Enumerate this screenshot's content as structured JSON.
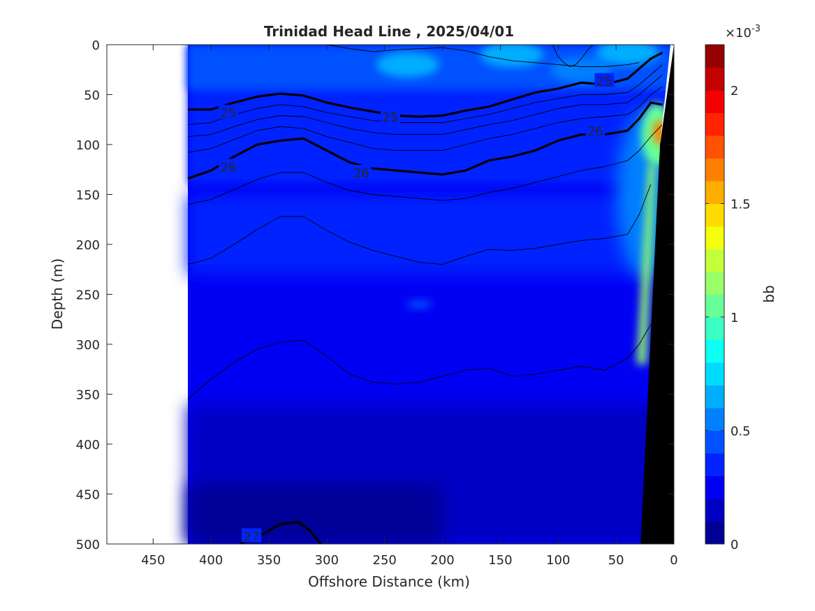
{
  "chart_data": {
    "type": "heatmap",
    "title": "Trinidad Head Line , 2025/04/01",
    "xlabel": "Offshore Distance (km)",
    "ylabel": "Depth (m)",
    "xlim": [
      490,
      0
    ],
    "ylim": [
      500,
      0
    ],
    "x_reversed": true,
    "y_reversed": true,
    "x_ticks": [
      450,
      400,
      350,
      300,
      250,
      200,
      150,
      100,
      50,
      0
    ],
    "y_ticks": [
      0,
      50,
      100,
      150,
      200,
      250,
      300,
      350,
      400,
      450,
      500
    ],
    "data_extent_km": [
      0,
      420
    ],
    "colorbar": {
      "label": "bb",
      "exponent_label": "×10",
      "exponent_power": "-3",
      "range": [
        0,
        2.2
      ],
      "ticks": [
        0,
        0.5,
        1,
        1.5,
        2
      ],
      "levels": 22,
      "colormap": "jet"
    },
    "field_description": "backscatter bb (x10^-3): mostly 0.1–0.5 over the section, elevated 0.5–0.7 in the upper 40 m, maximum ~1.6 near 15 km offshore at 80–100 m depth, high (~1.0–1.2) along the slope at 150–300 m; seafloor shown in black",
    "contours": [
      {
        "level": 25,
        "label": "25",
        "bold": true,
        "x": [
          420,
          400,
          380,
          360,
          340,
          320,
          300,
          280,
          260,
          240,
          220,
          200,
          180,
          160,
          140,
          120,
          100,
          80,
          60,
          40,
          30,
          20,
          10
        ],
        "y": [
          65,
          65,
          58,
          52,
          49,
          51,
          58,
          63,
          67,
          71,
          72,
          71,
          66,
          62,
          55,
          48,
          44,
          38,
          40,
          34,
          24,
          14,
          8
        ]
      },
      {
        "level": 26,
        "label": "26",
        "bold": true,
        "x": [
          420,
          400,
          380,
          360,
          340,
          320,
          300,
          280,
          260,
          240,
          220,
          200,
          180,
          160,
          140,
          120,
          100,
          80,
          60,
          40,
          30,
          20,
          10
        ],
        "y": [
          134,
          126,
          112,
          100,
          96,
          94,
          106,
          118,
          124,
          126,
          128,
          130,
          126,
          116,
          112,
          106,
          96,
          90,
          90,
          86,
          74,
          58,
          60
        ]
      },
      {
        "level": 25.3,
        "label": "",
        "bold": false,
        "x": [
          420,
          400,
          380,
          360,
          340,
          320,
          300,
          280,
          260,
          240,
          220,
          200,
          180,
          160,
          140,
          120,
          100,
          80,
          60,
          40,
          30,
          20,
          10
        ],
        "y": [
          80,
          78,
          70,
          64,
          60,
          62,
          68,
          72,
          76,
          78,
          78,
          78,
          74,
          70,
          64,
          58,
          54,
          50,
          50,
          48,
          40,
          30,
          20
        ]
      },
      {
        "level": 25.5,
        "label": "",
        "bold": false,
        "x": [
          420,
          400,
          380,
          360,
          340,
          320,
          300,
          280,
          260,
          240,
          220,
          200,
          180,
          160,
          140,
          120,
          100,
          80,
          60,
          40,
          30,
          20,
          10
        ],
        "y": [
          92,
          90,
          82,
          75,
          71,
          72,
          78,
          84,
          88,
          90,
          90,
          90,
          85,
          80,
          76,
          70,
          64,
          60,
          60,
          58,
          50,
          40,
          30
        ]
      },
      {
        "level": 25.8,
        "label": "",
        "bold": false,
        "x": [
          420,
          400,
          380,
          360,
          340,
          320,
          300,
          280,
          260,
          240,
          220,
          200,
          180,
          160,
          140,
          120,
          100,
          80,
          60,
          40,
          30,
          20,
          10
        ],
        "y": [
          108,
          104,
          95,
          86,
          82,
          84,
          92,
          98,
          104,
          106,
          106,
          106,
          100,
          94,
          90,
          84,
          78,
          74,
          72,
          70,
          62,
          50,
          42
        ]
      },
      {
        "level": 26.3,
        "label": "",
        "bold": false,
        "x": [
          420,
          400,
          380,
          360,
          340,
          320,
          300,
          280,
          260,
          240,
          220,
          200,
          180,
          160,
          140,
          120,
          100,
          80,
          60,
          40,
          30,
          20,
          10
        ],
        "y": [
          160,
          155,
          145,
          135,
          128,
          128,
          138,
          146,
          150,
          152,
          154,
          156,
          154,
          148,
          144,
          138,
          132,
          126,
          122,
          116,
          106,
          92,
          80
        ]
      },
      {
        "level": 26.6,
        "label": "",
        "bold": false,
        "x": [
          420,
          400,
          380,
          360,
          340,
          320,
          300,
          280,
          260,
          240,
          220,
          200,
          180,
          160,
          140,
          120,
          100,
          80,
          60,
          40,
          30,
          20
        ],
        "y": [
          220,
          214,
          200,
          185,
          172,
          172,
          186,
          198,
          206,
          212,
          218,
          220,
          212,
          205,
          206,
          204,
          200,
          196,
          194,
          190,
          170,
          140
        ]
      },
      {
        "level": 26.8,
        "label": "",
        "bold": false,
        "x": [
          420,
          400,
          380,
          360,
          340,
          320,
          300,
          280,
          260,
          240,
          220,
          200,
          180,
          160,
          140,
          120,
          100,
          80,
          60,
          40,
          30,
          20
        ],
        "y": [
          355,
          335,
          318,
          305,
          298,
          296,
          312,
          330,
          338,
          340,
          338,
          332,
          326,
          324,
          332,
          330,
          326,
          322,
          326,
          314,
          300,
          280
        ]
      },
      {
        "level": 25.0,
        "label": "",
        "bold": false,
        "x": [
          300,
          280,
          260,
          240,
          220,
          200,
          180,
          160,
          140,
          120,
          100,
          80,
          60,
          40,
          30
        ],
        "y": [
          0,
          4,
          7,
          5,
          4,
          3,
          6,
          12,
          16,
          18,
          20,
          22,
          22,
          20,
          18
        ]
      },
      {
        "level": 24.9,
        "label": "",
        "bold": false,
        "x": [
          105,
          100,
          95,
          90,
          85,
          80,
          75,
          70
        ],
        "y": [
          0,
          12,
          18,
          22,
          20,
          14,
          6,
          0
        ]
      },
      {
        "level": 27,
        "label": "27",
        "bold": true,
        "x": [
          375,
          355,
          340,
          325,
          315,
          305
        ],
        "y": [
          500,
          490,
          480,
          478,
          486,
          500
        ]
      }
    ],
    "contour_label_positions": [
      {
        "text": "25",
        "x": 385,
        "y": 68
      },
      {
        "text": "25",
        "x": 245,
        "y": 72
      },
      {
        "text": "25",
        "x": 60,
        "y": 36
      },
      {
        "text": "26",
        "x": 385,
        "y": 122
      },
      {
        "text": "26",
        "x": 270,
        "y": 128
      },
      {
        "text": "26",
        "x": 68,
        "y": 86
      },
      {
        "text": "27",
        "x": 365,
        "y": 492
      }
    ],
    "bathymetry_km_at_depth": [
      {
        "depth": 0,
        "x": 0
      },
      {
        "depth": 0,
        "x": 0
      },
      {
        "depth": 100,
        "x": 12
      },
      {
        "depth": 500,
        "x": 30
      }
    ]
  }
}
